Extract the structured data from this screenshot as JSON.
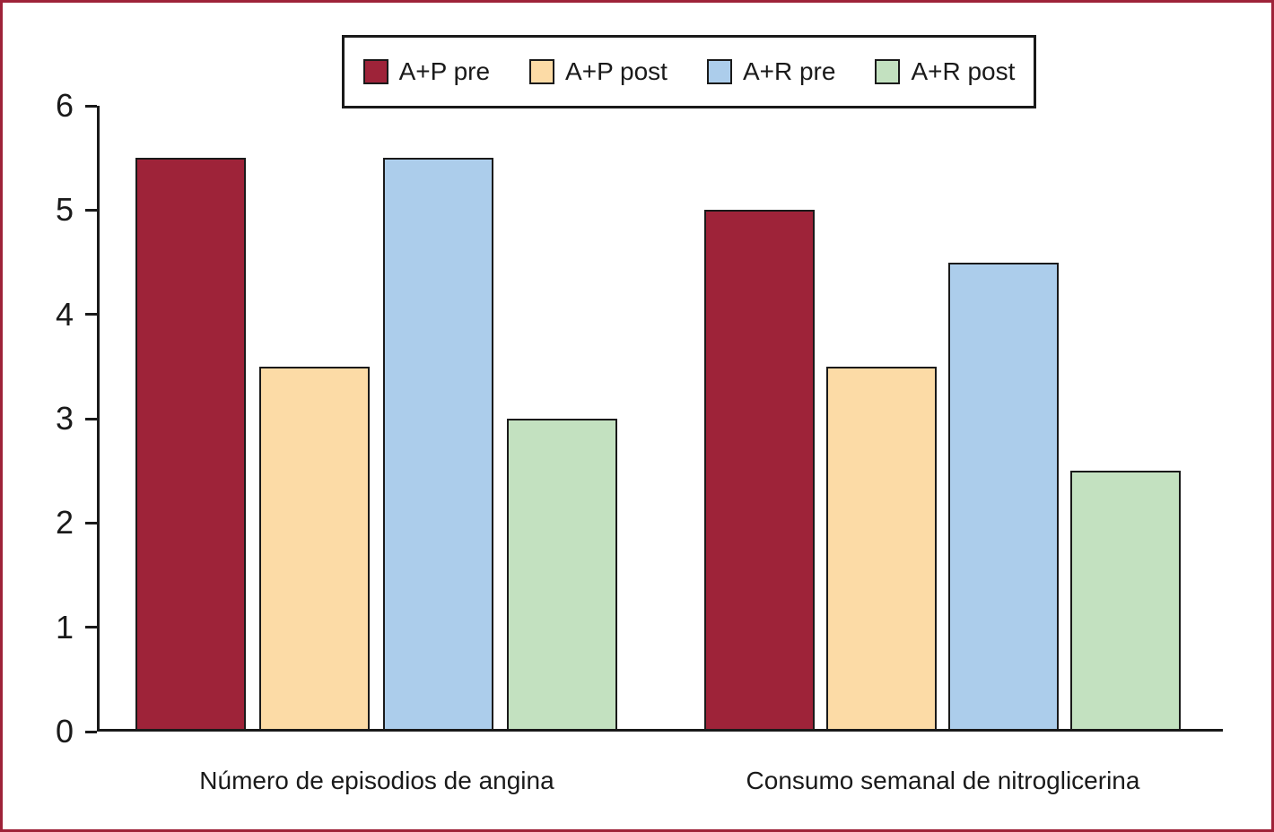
{
  "frame": {
    "border_color": "#9e2339",
    "background": "#ffffff"
  },
  "legend": {
    "position": "top",
    "items": [
      {
        "label": "A+P pre",
        "color": "#9e2339"
      },
      {
        "label": "A+P post",
        "color": "#fcdba6"
      },
      {
        "label": "A+R pre",
        "color": "#accdeb"
      },
      {
        "label": "A+R post",
        "color": "#c3e1c0"
      }
    ]
  },
  "chart_data": {
    "type": "bar",
    "categories": [
      "Número de episodios de angina",
      "Consumo semanal de nitroglicerina"
    ],
    "series": [
      {
        "name": "A+P pre",
        "color": "#9e2339",
        "values": [
          5.5,
          5.0
        ]
      },
      {
        "name": "A+P post",
        "color": "#fcdba6",
        "values": [
          3.5,
          3.5
        ]
      },
      {
        "name": "A+R pre",
        "color": "#accdeb",
        "values": [
          5.5,
          4.5
        ]
      },
      {
        "name": "A+R post",
        "color": "#c3e1c0",
        "values": [
          3.0,
          2.5
        ]
      }
    ],
    "ylim": [
      0,
      6
    ],
    "yticks": [
      "0",
      "1",
      "2",
      "3",
      "4",
      "5",
      "6"
    ],
    "xlabel": "",
    "ylabel": "",
    "title": "",
    "grid": false,
    "bar_edge_color": "#1a1a1a",
    "axis_color": "#1a1a1a"
  }
}
